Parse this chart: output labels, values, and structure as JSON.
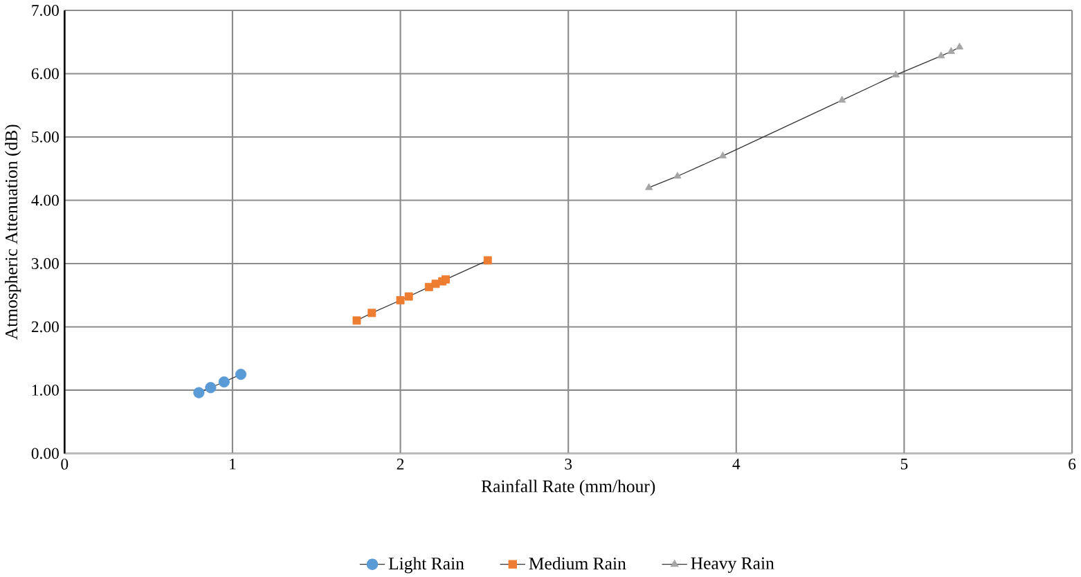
{
  "chart_data": {
    "type": "line",
    "xlabel": "Rainfall Rate (mm/hour)",
    "ylabel": "Atmospheric Attenuation (dB)",
    "xlim": [
      0,
      6
    ],
    "xticks": [
      0,
      1,
      2,
      3,
      4,
      5,
      6
    ],
    "ylim": [
      0,
      7
    ],
    "yticks": [
      {
        "value": 0,
        "label": "0.00"
      },
      {
        "value": 1,
        "label": "1.00"
      },
      {
        "value": 2,
        "label": "2.00"
      },
      {
        "value": 3,
        "label": "3.00"
      },
      {
        "value": 4,
        "label": "4.00"
      },
      {
        "value": 5,
        "label": "5.00"
      },
      {
        "value": 6,
        "label": "6.00"
      },
      {
        "value": 7,
        "label": "7.00"
      }
    ],
    "grid": true,
    "legend": "bottom",
    "series": [
      {
        "name": "Light Rain",
        "color": "#5b9bd5",
        "marker": "circle",
        "x": [
          0.8,
          0.87,
          0.95,
          1.05
        ],
        "values": [
          0.96,
          1.04,
          1.13,
          1.25
        ]
      },
      {
        "name": "Medium Rain",
        "color": "#ed7d31",
        "marker": "square",
        "x": [
          1.74,
          1.83,
          2.0,
          2.05,
          2.17,
          2.21,
          2.25,
          2.27,
          2.52
        ],
        "values": [
          2.1,
          2.22,
          2.42,
          2.48,
          2.63,
          2.68,
          2.72,
          2.75,
          3.05
        ]
      },
      {
        "name": "Heavy Rain",
        "color": "#a5a5a5",
        "marker": "triangle",
        "x": [
          3.48,
          3.65,
          3.92,
          4.63,
          4.95,
          5.22,
          5.28,
          5.33
        ],
        "values": [
          4.2,
          4.38,
          4.7,
          5.58,
          5.98,
          6.28,
          6.35,
          6.42
        ]
      }
    ]
  }
}
